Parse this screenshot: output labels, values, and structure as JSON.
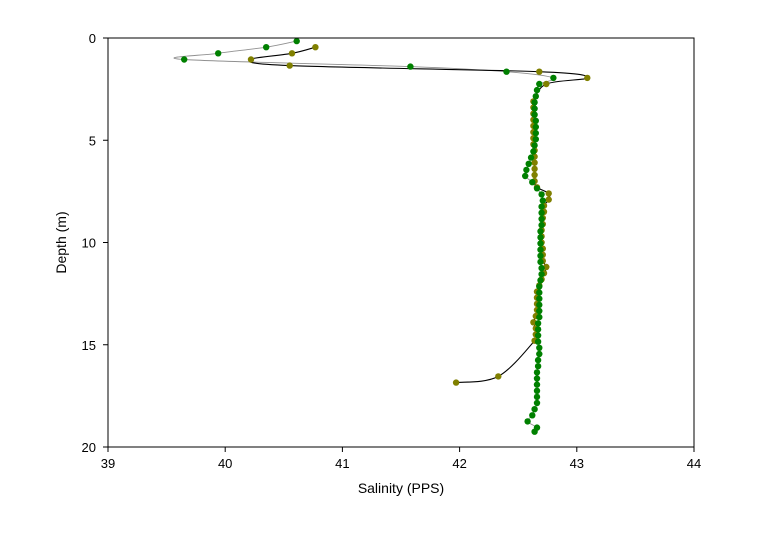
{
  "chart_data": {
    "type": "scatter",
    "title": "",
    "xlabel": "Salinity (PPS)",
    "ylabel": "Depth (m)",
    "xlim": [
      39,
      44
    ],
    "ylim": [
      20,
      0
    ],
    "y_inverted": true,
    "x_ticks": [
      "39",
      "40",
      "41",
      "42",
      "43",
      "44"
    ],
    "y_ticks": [
      "0",
      "5",
      "10",
      "15",
      "20"
    ],
    "grid": false,
    "legend": "none",
    "series": [
      {
        "marker_color": "#808000",
        "line_color": "#000000",
        "points": [
          [
            40.77,
            0.45
          ],
          [
            40.57,
            0.75
          ],
          [
            40.22,
            1.05
          ],
          [
            40.55,
            1.35
          ],
          [
            42.68,
            1.65
          ],
          [
            43.09,
            1.95
          ],
          [
            42.74,
            2.25
          ],
          [
            42.63,
            3.1
          ],
          [
            42.63,
            3.4
          ],
          [
            42.63,
            3.7
          ],
          [
            42.63,
            4.0
          ],
          [
            42.63,
            4.3
          ],
          [
            42.63,
            4.6
          ],
          [
            42.63,
            4.9
          ],
          [
            42.63,
            5.2
          ],
          [
            42.64,
            5.5
          ],
          [
            42.64,
            5.8
          ],
          [
            42.64,
            6.1
          ],
          [
            42.64,
            6.4
          ],
          [
            42.64,
            6.7
          ],
          [
            42.64,
            7.0
          ],
          [
            42.66,
            7.3
          ],
          [
            42.76,
            7.6
          ],
          [
            42.76,
            7.9
          ],
          [
            42.72,
            8.2
          ],
          [
            42.72,
            8.5
          ],
          [
            42.71,
            8.8
          ],
          [
            42.71,
            9.1
          ],
          [
            42.7,
            9.4
          ],
          [
            42.7,
            9.7
          ],
          [
            42.7,
            10.0
          ],
          [
            42.71,
            10.3
          ],
          [
            42.71,
            10.6
          ],
          [
            42.71,
            10.9
          ],
          [
            42.74,
            11.2
          ],
          [
            42.72,
            11.5
          ],
          [
            42.7,
            11.8
          ],
          [
            42.68,
            12.1
          ],
          [
            42.66,
            12.4
          ],
          [
            42.66,
            12.7
          ],
          [
            42.66,
            13.0
          ],
          [
            42.66,
            13.3
          ],
          [
            42.65,
            13.6
          ],
          [
            42.63,
            13.9
          ],
          [
            42.65,
            14.2
          ],
          [
            42.65,
            14.5
          ],
          [
            42.64,
            14.8
          ],
          [
            42.33,
            16.55
          ],
          [
            41.97,
            16.85
          ]
        ]
      },
      {
        "marker_color": "#008000",
        "line_color": "#909090",
        "points": [
          [
            40.61,
            0.15
          ],
          [
            40.35,
            0.45
          ],
          [
            39.94,
            0.75
          ],
          [
            39.65,
            1.05
          ],
          [
            41.58,
            1.4
          ],
          [
            42.4,
            1.65
          ],
          [
            42.8,
            1.95
          ],
          [
            42.68,
            2.25
          ],
          [
            42.66,
            2.55
          ],
          [
            42.65,
            2.85
          ],
          [
            42.64,
            3.15
          ],
          [
            42.64,
            3.45
          ],
          [
            42.64,
            3.75
          ],
          [
            42.65,
            4.05
          ],
          [
            42.65,
            4.35
          ],
          [
            42.65,
            4.65
          ],
          [
            42.65,
            4.95
          ],
          [
            42.64,
            5.25
          ],
          [
            42.63,
            5.55
          ],
          [
            42.61,
            5.85
          ],
          [
            42.59,
            6.15
          ],
          [
            42.57,
            6.45
          ],
          [
            42.56,
            6.75
          ],
          [
            42.62,
            7.05
          ],
          [
            42.66,
            7.35
          ],
          [
            42.7,
            7.65
          ],
          [
            42.71,
            7.95
          ],
          [
            42.7,
            8.25
          ],
          [
            42.7,
            8.55
          ],
          [
            42.7,
            8.85
          ],
          [
            42.7,
            9.15
          ],
          [
            42.69,
            9.45
          ],
          [
            42.69,
            9.75
          ],
          [
            42.69,
            10.05
          ],
          [
            42.69,
            10.35
          ],
          [
            42.69,
            10.65
          ],
          [
            42.69,
            10.95
          ],
          [
            42.7,
            11.25
          ],
          [
            42.7,
            11.55
          ],
          [
            42.69,
            11.85
          ],
          [
            42.68,
            12.15
          ],
          [
            42.68,
            12.45
          ],
          [
            42.68,
            12.75
          ],
          [
            42.68,
            13.05
          ],
          [
            42.68,
            13.35
          ],
          [
            42.68,
            13.65
          ],
          [
            42.67,
            13.95
          ],
          [
            42.67,
            14.25
          ],
          [
            42.67,
            14.55
          ],
          [
            42.67,
            14.85
          ],
          [
            42.68,
            15.15
          ],
          [
            42.68,
            15.45
          ],
          [
            42.67,
            15.75
          ],
          [
            42.67,
            16.05
          ],
          [
            42.66,
            16.35
          ],
          [
            42.66,
            16.65
          ],
          [
            42.66,
            16.95
          ],
          [
            42.66,
            17.25
          ],
          [
            42.66,
            17.55
          ],
          [
            42.66,
            17.85
          ],
          [
            42.64,
            18.15
          ],
          [
            42.62,
            18.45
          ],
          [
            42.58,
            18.75
          ],
          [
            42.66,
            19.05
          ],
          [
            42.64,
            19.25
          ]
        ]
      }
    ]
  }
}
